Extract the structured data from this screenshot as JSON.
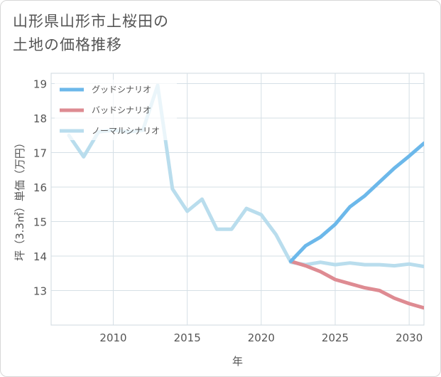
{
  "title": {
    "line1": "山形県山形市上桜田の",
    "line2": "土地の価格推移"
  },
  "chart_data": {
    "type": "line",
    "xlabel": "年",
    "ylabel": "坪（3.3㎡）単価（万円）",
    "xlim": [
      2005.8,
      2031
    ],
    "ylim": [
      12,
      19.3
    ],
    "xticks": [
      2010,
      2015,
      2020,
      2025,
      2030
    ],
    "yticks": [
      13,
      14,
      15,
      16,
      17,
      18,
      19
    ],
    "grid": true,
    "legend_position": "top-left",
    "series": [
      {
        "name": "グッドシナリオ",
        "color": "#6cb8ea",
        "x": [
          2022,
          2023,
          2024,
          2025,
          2026,
          2027,
          2028,
          2029,
          2030,
          2031
        ],
        "y": [
          13.85,
          14.3,
          14.55,
          14.92,
          15.43,
          15.75,
          16.15,
          16.55,
          16.9,
          17.27
        ]
      },
      {
        "name": "バッドシナリオ",
        "color": "#de8b92",
        "x": [
          2022,
          2023,
          2024,
          2025,
          2026,
          2027,
          2028,
          2029,
          2030,
          2031
        ],
        "y": [
          13.85,
          13.72,
          13.55,
          13.32,
          13.2,
          13.08,
          13.0,
          12.78,
          12.62,
          12.5
        ]
      },
      {
        "name": "ノーマルシナリオ",
        "color": "#b9dded",
        "x": [
          2007,
          2008,
          2009,
          2010,
          2011,
          2012,
          2013,
          2014,
          2015,
          2016,
          2017,
          2018,
          2019,
          2020,
          2021,
          2022,
          2023,
          2024,
          2025,
          2026,
          2027,
          2028,
          2029,
          2030,
          2031
        ],
        "y": [
          17.5,
          16.88,
          17.6,
          17.65,
          17.6,
          17.65,
          18.95,
          15.95,
          15.3,
          15.65,
          14.78,
          14.78,
          15.38,
          15.2,
          14.62,
          13.82,
          13.75,
          13.82,
          13.75,
          13.8,
          13.75,
          13.75,
          13.72,
          13.77,
          13.7
        ]
      }
    ]
  }
}
